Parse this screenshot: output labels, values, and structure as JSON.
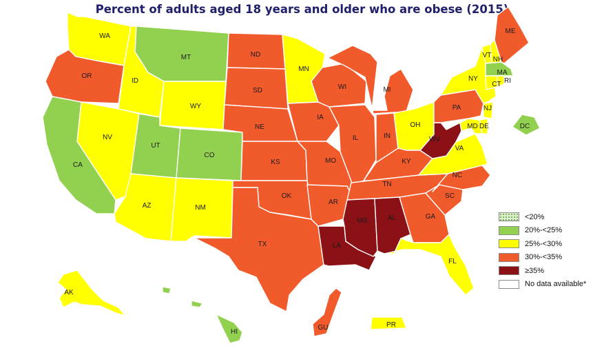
{
  "title": "Percent of adults aged 18 years and older who are obese (2015)",
  "colors": {
    "lt20": "#dff0d0",
    "20to25": "#92d050",
    "25to30": "#ffff00",
    "30to35": "#f15a2b",
    "ge35": "#8b1117",
    "nodata": "#ffffff"
  },
  "legend": [
    {
      "key": "lt20",
      "label": "<20%"
    },
    {
      "key": "20to25",
      "label": "20%-<25%"
    },
    {
      "key": "25to30",
      "label": "25%-<30%"
    },
    {
      "key": "30to35",
      "label": "30%-<35%"
    },
    {
      "key": "ge35",
      "label": "≥35%"
    },
    {
      "key": "nodata",
      "label": "No data available*"
    }
  ],
  "states": {
    "WA": "25to30",
    "OR": "30to35",
    "CA": "20to25",
    "ID": "25to30",
    "NV": "25to30",
    "MT": "20to25",
    "WY": "25to30",
    "UT": "20to25",
    "CO": "20to25",
    "AZ": "25to30",
    "NM": "25to30",
    "ND": "30to35",
    "SD": "30to35",
    "NE": "30to35",
    "KS": "30to35",
    "OK": "30to35",
    "TX": "30to35",
    "MN": "25to30",
    "IA": "30to35",
    "MO": "30to35",
    "AR": "30to35",
    "LA": "ge35",
    "WI": "30to35",
    "IL": "30to35",
    "MS": "ge35",
    "MI": "30to35",
    "IN": "30to35",
    "KY": "30to35",
    "TN": "30to35",
    "AL": "ge35",
    "OH": "25to30",
    "WV": "ge35",
    "GA": "30to35",
    "FL": "25to30",
    "SC": "30to35",
    "NC": "30to35",
    "VA": "25to30",
    "PA": "30to35",
    "NY": "25to30",
    "ME": "30to35",
    "VT": "25to30",
    "NH": "25to30",
    "MA": "20to25",
    "CT": "25to30",
    "RI": "25to30",
    "NJ": "25to30",
    "DE": "25to30",
    "MD": "25to30",
    "DC": "20to25",
    "AK": "25to30",
    "HI": "20to25",
    "GU": "30to35",
    "PR": "25to30"
  }
}
